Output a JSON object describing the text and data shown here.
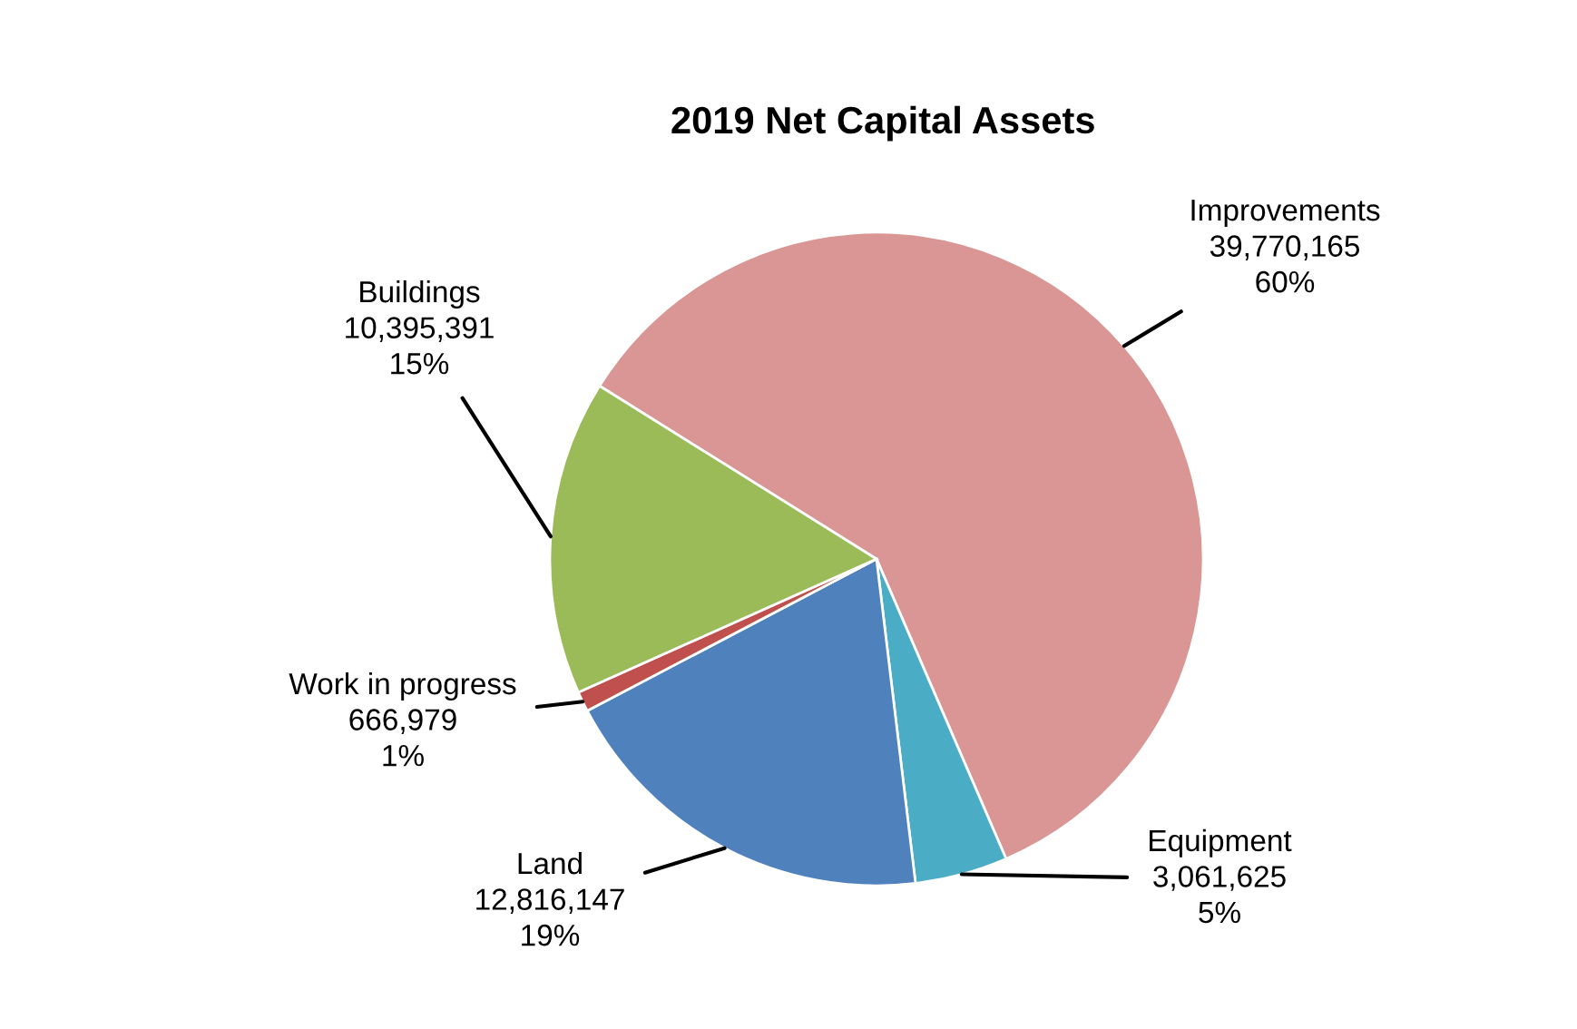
{
  "chart_data": {
    "type": "pie",
    "title": "2019 Net Capital Assets",
    "categories": [
      "Improvements",
      "Equipment",
      "Land",
      "Work in progress",
      "Buildings"
    ],
    "values": [
      39770165,
      3061625,
      12816147,
      666979,
      10395391
    ],
    "colors": [
      "#d99694",
      "#4bacc6",
      "#4f81bd",
      "#c0504d",
      "#9bbb59"
    ],
    "value_labels": [
      "39,770,165\n60%",
      "3,061,625\n5%",
      "12,816,147\n19%",
      "666,979\n1%",
      "10,395,391\n15%"
    ],
    "legend": false
  }
}
